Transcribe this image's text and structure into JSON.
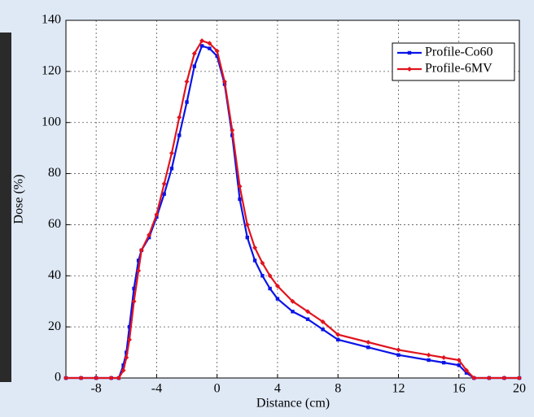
{
  "chart_data": {
    "type": "line",
    "x_label": "Distance (cm)",
    "y_label": "Dose (%)",
    "x": [
      -10,
      -9,
      -8,
      -7,
      -6.5,
      -6.2,
      -6,
      -5.8,
      -5.5,
      -5.2,
      -5,
      -4.5,
      -4,
      -3.5,
      -3,
      -2.5,
      -2,
      -1.5,
      -1,
      -0.5,
      0,
      0.5,
      1,
      1.5,
      2,
      2.5,
      3,
      3.5,
      4,
      5,
      6,
      7,
      8,
      10,
      12,
      14,
      15,
      16,
      16.5,
      17,
      18,
      19,
      20
    ],
    "series": [
      {
        "name": "Profile-Co60",
        "color": "#0a14e6",
        "marker": "square",
        "values": [
          0,
          0,
          0,
          0,
          0,
          5,
          10,
          20,
          35,
          46,
          50,
          55,
          63,
          72,
          82,
          95,
          108,
          122,
          130,
          129,
          126,
          115,
          95,
          70,
          55,
          46,
          40,
          35,
          31,
          26,
          23,
          19,
          15,
          12,
          9,
          7,
          6,
          5,
          2,
          0,
          0,
          0,
          0
        ]
      },
      {
        "name": "Profile-6MV",
        "color": "#e0141e",
        "marker": "diamond",
        "values": [
          0,
          0,
          0,
          0,
          0,
          3,
          8,
          15,
          30,
          42,
          50,
          56,
          64,
          76,
          88,
          102,
          116,
          127,
          132,
          131,
          128,
          116,
          97,
          75,
          60,
          51,
          45,
          40,
          36,
          30,
          26,
          22,
          17,
          14,
          11,
          9,
          8,
          7,
          3,
          0,
          0,
          0,
          0
        ]
      }
    ],
    "xlim": [
      -10,
      20
    ],
    "xticks": [
      -8,
      -4,
      0,
      4,
      8,
      12,
      16,
      20
    ],
    "ylim": [
      0,
      140
    ],
    "yticks": [
      0,
      20,
      40,
      60,
      80,
      100,
      120,
      140
    ],
    "grid": true,
    "legend": "upper right"
  }
}
